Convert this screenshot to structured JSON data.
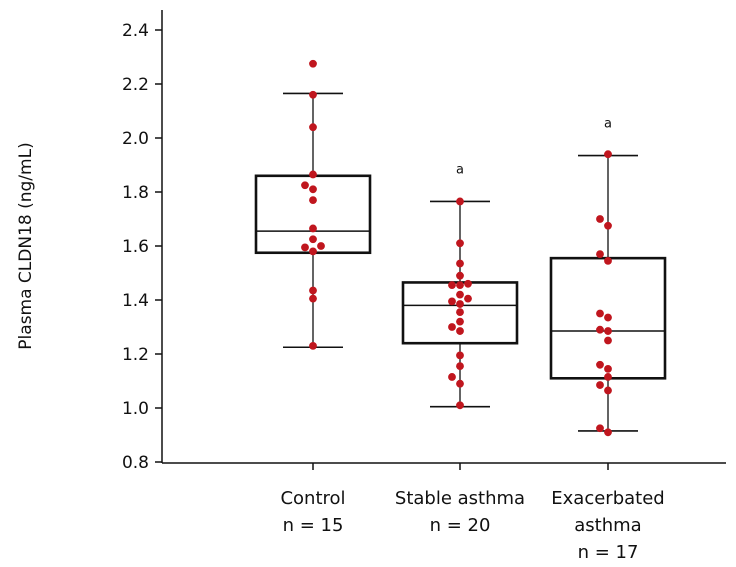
{
  "chart_data": {
    "type": "box",
    "ylabel": "Plasma CLDN18 (ng/mL)",
    "ylim": [
      0.8,
      2.45
    ],
    "yticks": [
      "0.8",
      "1.0",
      "1.2",
      "1.4",
      "1.6",
      "1.8",
      "2.0",
      "2.2",
      "2.4"
    ],
    "point_color": "#c0161e",
    "groups": [
      {
        "label_lines": [
          "Control",
          "n = 15"
        ],
        "n": 15,
        "whisker_low": 1.225,
        "q1": 1.575,
        "median": 1.655,
        "q3": 1.86,
        "whisker_high": 2.165,
        "annotation": "",
        "points": [
          2.275,
          2.16,
          2.04,
          1.865,
          1.825,
          1.81,
          1.77,
          1.665,
          1.625,
          1.6,
          1.595,
          1.58,
          1.435,
          1.405,
          1.23
        ]
      },
      {
        "label_lines": [
          "Stable asthma",
          "n = 20"
        ],
        "n": 20,
        "whisker_low": 1.005,
        "q1": 1.24,
        "median": 1.38,
        "q3": 1.465,
        "whisker_high": 1.765,
        "annotation": "a",
        "points": [
          1.765,
          1.61,
          1.535,
          1.49,
          1.46,
          1.455,
          1.42,
          1.405,
          1.395,
          1.385,
          1.355,
          1.32,
          1.3,
          1.285,
          1.195,
          1.155,
          1.115,
          1.09,
          1.01,
          1.455
        ]
      },
      {
        "label_lines": [
          "Exacerbated",
          "asthma",
          "n = 17"
        ],
        "n": 17,
        "whisker_low": 0.915,
        "q1": 1.11,
        "median": 1.285,
        "q3": 1.555,
        "whisker_high": 1.935,
        "annotation": "a",
        "points": [
          1.94,
          1.7,
          1.675,
          1.57,
          1.545,
          1.35,
          1.335,
          1.29,
          1.285,
          1.25,
          1.16,
          1.145,
          1.115,
          1.085,
          1.065,
          0.925,
          0.91
        ]
      }
    ]
  }
}
